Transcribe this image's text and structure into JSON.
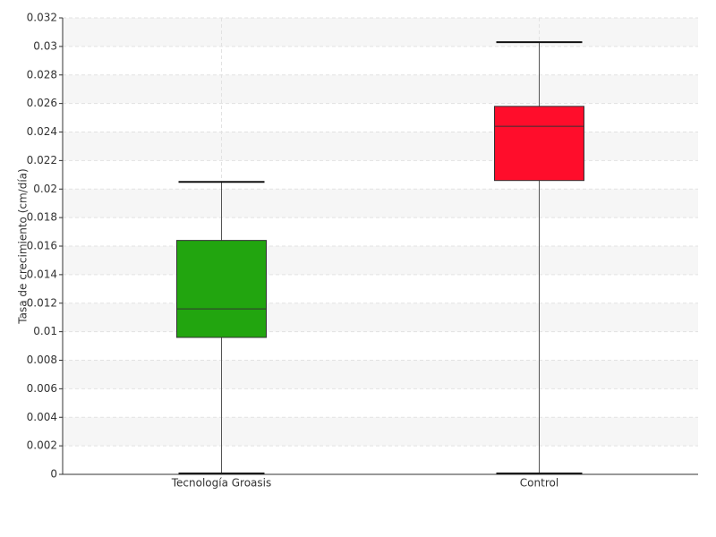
{
  "chart_data": {
    "type": "box",
    "y_label": "Tasa de crecimiento (cm/día)",
    "categories": [
      "Tecnología Groasis",
      "Control"
    ],
    "colors": [
      "#22a50f",
      "#ff0d2b"
    ],
    "stats": [
      {
        "min": 0,
        "q1": 0.0096,
        "median": 0.0116,
        "q3": 0.0164,
        "max": 0.0205
      },
      {
        "min": 0,
        "q1": 0.0206,
        "median": 0.0244,
        "q3": 0.0258,
        "max": 0.0303
      }
    ],
    "ylim": [
      0,
      0.032
    ],
    "yticks": [
      0,
      0.002,
      0.004,
      0.006,
      0.008,
      0.01,
      0.012,
      0.014,
      0.016,
      0.018,
      0.02,
      0.022,
      0.024,
      0.026,
      0.028,
      0.03,
      0.032
    ],
    "grid": true
  }
}
